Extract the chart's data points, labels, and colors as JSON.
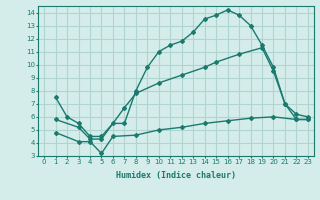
{
  "xlabel": "Humidex (Indice chaleur)",
  "ylabel": "",
  "bg_color": "#d4ecea",
  "line_color": "#1a7a6e",
  "grid_color": "#b0d4d0",
  "xlim": [
    -0.5,
    23.5
  ],
  "ylim": [
    3,
    14.5
  ],
  "xticks": [
    0,
    1,
    2,
    3,
    4,
    5,
    6,
    7,
    8,
    9,
    10,
    11,
    12,
    13,
    14,
    15,
    16,
    17,
    18,
    19,
    20,
    21,
    22,
    23
  ],
  "yticks": [
    3,
    4,
    5,
    6,
    7,
    8,
    9,
    10,
    11,
    12,
    13,
    14
  ],
  "line1_x": [
    1,
    2,
    3,
    4,
    5,
    6,
    7,
    8,
    9,
    10,
    11,
    12,
    13,
    14,
    15,
    16,
    17,
    18,
    19,
    20,
    21,
    22,
    23
  ],
  "line1_y": [
    7.5,
    6.0,
    5.5,
    4.5,
    4.5,
    5.5,
    5.5,
    8.0,
    9.8,
    11.0,
    11.5,
    11.8,
    12.5,
    13.5,
    13.8,
    14.2,
    13.8,
    13.0,
    11.5,
    9.8,
    7.0,
    6.2,
    6.0
  ],
  "line2_x": [
    1,
    3,
    4,
    5,
    7,
    8,
    10,
    12,
    14,
    15,
    17,
    19,
    20,
    21,
    22,
    23
  ],
  "line2_y": [
    5.8,
    5.2,
    4.3,
    4.3,
    6.7,
    7.8,
    8.6,
    9.2,
    9.8,
    10.2,
    10.8,
    11.3,
    9.5,
    7.0,
    5.8,
    5.8
  ],
  "line3_x": [
    1,
    3,
    4,
    5,
    6,
    8,
    10,
    12,
    14,
    16,
    18,
    20,
    22,
    23
  ],
  "line3_y": [
    4.8,
    4.1,
    4.1,
    3.2,
    4.5,
    4.6,
    5.0,
    5.2,
    5.5,
    5.7,
    5.9,
    6.0,
    5.8,
    5.8
  ]
}
